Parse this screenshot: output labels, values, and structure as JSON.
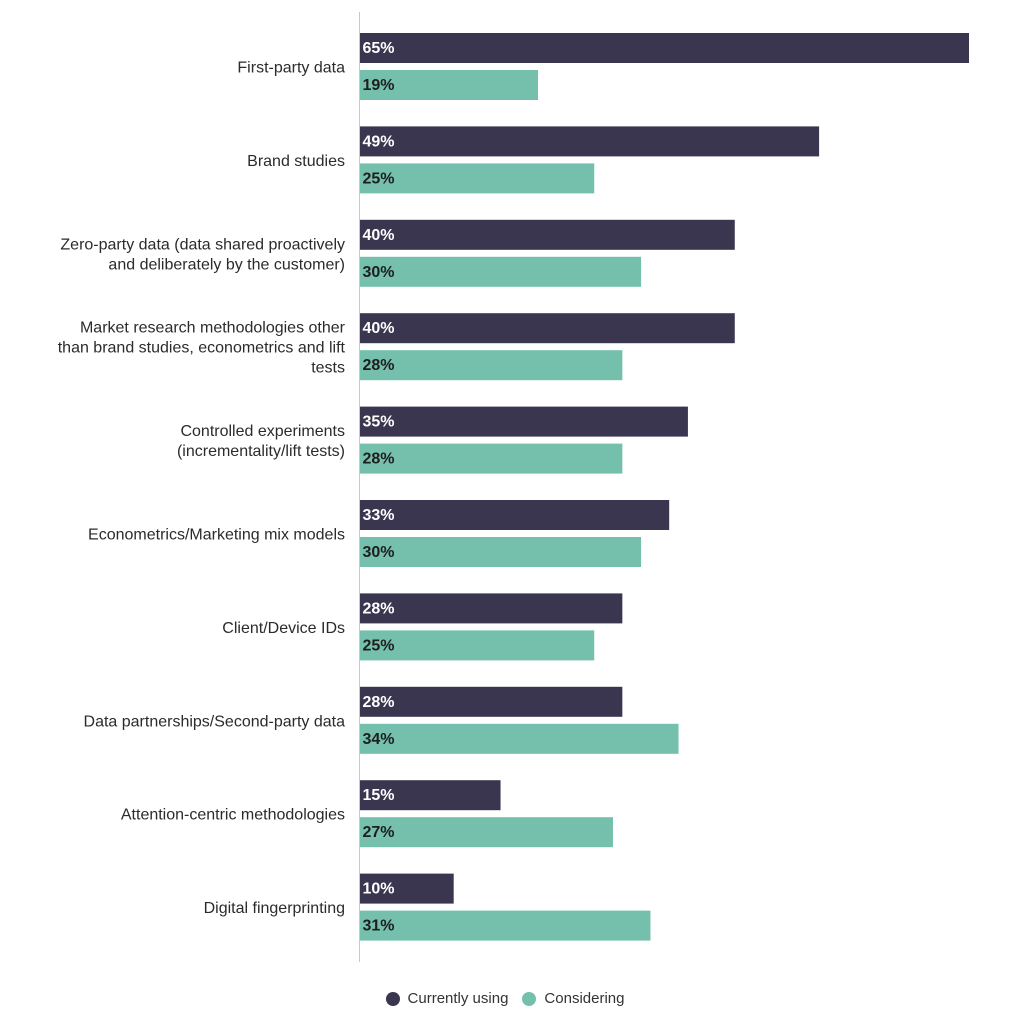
{
  "chart_data": {
    "type": "bar",
    "orientation": "horizontal",
    "title": "",
    "xlabel": "",
    "ylabel": "",
    "xlim": [
      0,
      65
    ],
    "grid": false,
    "legend_position": "bottom-center",
    "categories": [
      "First-party data",
      "Brand studies",
      "Zero-party data (data shared proactively and deliberately by the customer)",
      "Market research methodologies other than brand studies, econometrics and lift tests",
      "Controlled experiments (incrementality/lift tests)",
      "Econometrics/Marketing mix models",
      "Client/Device IDs",
      "Data partnerships/Second-party data",
      "Attention-centric methodologies",
      "Digital fingerprinting"
    ],
    "category_lines": [
      [
        "First-party data"
      ],
      [
        "Brand studies"
      ],
      [
        "Zero-party data (data shared proactively",
        "and deliberately by the customer)"
      ],
      [
        "Market research methodologies other",
        "than brand studies, econometrics and lift",
        "tests"
      ],
      [
        "Controlled experiments",
        "(incrementality/lift tests)"
      ],
      [
        "Econometrics/Marketing mix models"
      ],
      [
        "Client/Device IDs"
      ],
      [
        "Data partnerships/Second-party data"
      ],
      [
        "Attention-centric methodologies"
      ],
      [
        "Digital fingerprinting"
      ]
    ],
    "series": [
      {
        "name": "Currently using",
        "color": "#3a3650",
        "label_color": "#ffffff",
        "values": [
          65,
          49,
          40,
          40,
          35,
          33,
          28,
          28,
          15,
          10
        ],
        "labels": [
          "65%",
          "49%",
          "40%",
          "40%",
          "35%",
          "33%",
          "28%",
          "28%",
          "15%",
          "10%"
        ]
      },
      {
        "name": "Considering",
        "color": "#74c0ac",
        "label_color": "#1e1e1e",
        "values": [
          19,
          25,
          30,
          28,
          28,
          30,
          25,
          34,
          27,
          31
        ],
        "labels": [
          "19%",
          "25%",
          "30%",
          "28%",
          "28%",
          "30%",
          "25%",
          "34%",
          "27%",
          "31%"
        ]
      }
    ]
  },
  "legend": {
    "items": [
      {
        "label": "Currently using",
        "color": "#3a3650"
      },
      {
        "label": "Considering",
        "color": "#74c0ac"
      }
    ]
  }
}
